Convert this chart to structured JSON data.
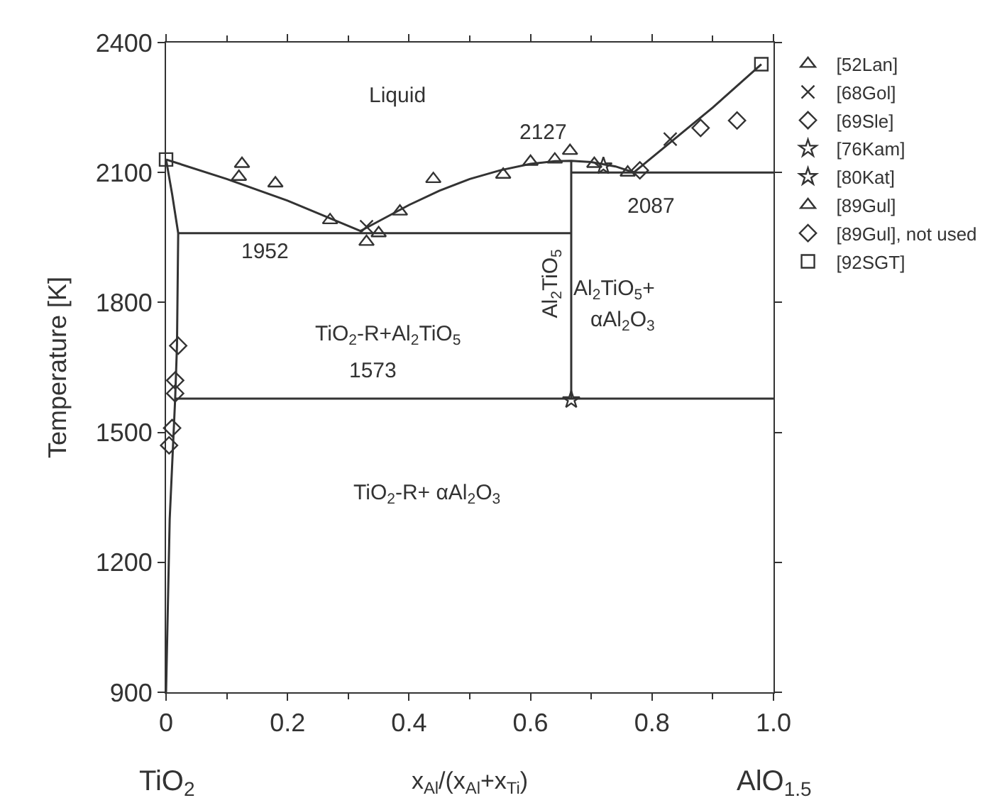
{
  "chart_data": {
    "type": "scatter",
    "xlabel": "x$_{Al}$/(x$_{Al}$+x$_{Ti}$)",
    "ylabel": "Temperature [K]",
    "xlim": [
      0,
      1.0
    ],
    "xticks": [
      0,
      0.2,
      0.4,
      0.6,
      0.8,
      {
        "value": 1.0,
        "label": "1.0"
      }
    ],
    "ylim": [
      900,
      2400
    ],
    "yticks": [
      900,
      1200,
      1500,
      1800,
      2100,
      2400
    ],
    "legend": "top right",
    "series": [
      {
        "type": "line",
        "color": "#333333",
        "marker": "none",
        "x": [
          0,
          0.1,
          0.2,
          0.32,
          0.4,
          0.45,
          0.5,
          0.55,
          0.6,
          0.64,
          0.667,
          0.7,
          0.74,
          0.77
        ],
        "values": [
          2130,
          2085,
          2035,
          1965,
          2025,
          2058,
          2085,
          2105,
          2120,
          2126,
          2127,
          2124,
          2114,
          2100
        ]
      },
      {
        "type": "line",
        "color": "#333333",
        "marker": "none",
        "x": [
          0.77,
          0.9,
          0.98
        ],
        "values": [
          2100,
          2250,
          2350
        ]
      },
      {
        "type": "line",
        "color": "#333333",
        "marker": "none",
        "x": [
          0.02,
          0.667
        ],
        "values": [
          1960,
          1960
        ]
      },
      {
        "type": "line",
        "color": "#333333",
        "marker": "none",
        "x": [
          0.667,
          1.0
        ],
        "values": [
          2100,
          2100
        ]
      },
      {
        "type": "line",
        "color": "#333333",
        "marker": "none",
        "x": [
          0.015,
          1.0
        ],
        "values": [
          1578,
          1578
        ]
      },
      {
        "type": "line",
        "color": "#333333",
        "marker": "none",
        "x": [
          0.667,
          0.667
        ],
        "values": [
          1578,
          2127
        ]
      },
      {
        "type": "line",
        "color": "#333333",
        "marker": "none",
        "x": [
          0,
          0.01,
          0.02,
          0.018,
          0.015,
          0.006,
          0
        ],
        "values": [
          2130,
          2050,
          1960,
          1700,
          1578,
          1300,
          900
        ]
      },
      {
        "name": "[52Lan]",
        "color": "#333333",
        "marker": "triangle",
        "x": [
          0.27,
          0.12,
          0.665
        ],
        "values": [
          1990,
          2090,
          2150
        ]
      },
      {
        "name": "[68Gol]",
        "color": "#333333",
        "marker": "cross",
        "x": [
          0.33,
          0.83
        ],
        "values": [
          1975,
          2177
        ]
      },
      {
        "name": "[69Sle]",
        "color": "#333333",
        "marker": "diamond",
        "x": [
          0.02,
          0.015,
          0.015,
          0.01,
          0.005,
          0.78
        ],
        "values": [
          1700,
          1620,
          1590,
          1510,
          1470,
          2105
        ]
      },
      {
        "name": "[76Kam]",
        "color": "#333333",
        "marker": "star",
        "x": [
          0.72
        ],
        "values": [
          2115
        ]
      },
      {
        "name": "[80Kat]",
        "color": "#333333",
        "marker": "star",
        "x": [
          0.667
        ],
        "values": [
          1575
        ]
      },
      {
        "name": "[89Gul]",
        "color": "#333333",
        "marker": "triangle",
        "x": [
          0.125,
          0.18,
          0.33,
          0.35,
          0.385,
          0.44,
          0.555,
          0.6,
          0.64,
          0.705,
          0.76
        ],
        "values": [
          2120,
          2075,
          1940,
          1960,
          2010,
          2085,
          2095,
          2125,
          2130,
          2120,
          2100
        ]
      },
      {
        "name": "[89Gul], not used",
        "color": "#333333",
        "marker": "diamond",
        "x": [
          0.88,
          0.94
        ],
        "values": [
          2203,
          2220
        ]
      },
      {
        "name": "[92SGT]",
        "color": "#333333",
        "marker": "square",
        "x": [
          0,
          0.98
        ],
        "values": [
          2130,
          2350
        ]
      }
    ],
    "annotations": [
      "Liquid",
      "2127",
      "1952",
      "2087",
      "1573",
      "TiO$_{2}$-R+Al$_{2}$TiO$_{5}$",
      "Al$_{2}$TiO$_{5}$",
      "Al$_{2}$TiO$_{5}$+",
      "αAl$_{2}$O$_{3}$",
      "TiO$_{2}$-R+ αAl$_{2}$O$_{3}$",
      "TiO$_{2}$",
      "AlO$_{1.5}$"
    ]
  }
}
